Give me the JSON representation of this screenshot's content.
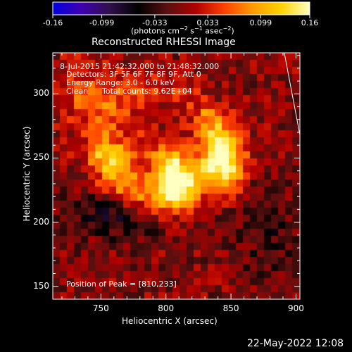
{
  "colorbar": {
    "tick_labels": [
      "-0.16",
      "-0.099",
      "-0.033",
      "0.033",
      "0.099",
      "0.16"
    ],
    "ticks": [
      -0.16,
      -0.099,
      -0.033,
      0.033,
      0.099,
      0.16
    ],
    "range": [
      -0.16,
      0.16
    ],
    "colors": [
      "#0000e0",
      "#4000b0",
      "#30104a",
      "#000000",
      "#5a1010",
      "#b00000",
      "#ff4000",
      "#ff9a00",
      "#ffd200",
      "#ffffc0"
    ],
    "unit_label": {
      "prefix": "(photons cm",
      "exp1": "−2",
      "mid": " s",
      "exp2": "−1",
      "suffix": " asec",
      "exp3": "−2",
      "end": ")"
    }
  },
  "chart_data": {
    "type": "heatmap",
    "title": "Reconstructed RHESSI Image",
    "xlabel": "Heliocentric X (arcsec)",
    "ylabel": "Heliocentric Y (arcsec)",
    "xlim": [
      713,
      903
    ],
    "ylim": [
      140,
      332
    ],
    "x_ticks": [
      750,
      800,
      850,
      900
    ],
    "y_ticks": [
      150,
      200,
      250,
      300
    ],
    "x_tick_labels": [
      "750",
      "800",
      "850",
      "900"
    ],
    "y_tick_labels": [
      "150",
      "200",
      "250",
      "300"
    ],
    "peak": [
      810,
      233
    ],
    "sources": [
      {
        "x": 805,
        "y": 237,
        "peak": 0.16
      },
      {
        "x": 847,
        "y": 247,
        "peak": 0.14
      }
    ],
    "annotations": {
      "time": " 8-Jul-2015 21:42:32.000 to 21:48:32.000",
      "detectors": "Detectors: 3F 5F 6F 7F 8F 9F, Att 0",
      "energy": "Energy Range: 3.0 - 6.0 keV",
      "method": "Clean",
      "counts": "Total counts: 9.62E+04",
      "peak_text": "Position of Peak = [810,233]"
    },
    "limb_color": "#ffffff"
  },
  "footer": {
    "date": "22-May-2022 12:08"
  }
}
